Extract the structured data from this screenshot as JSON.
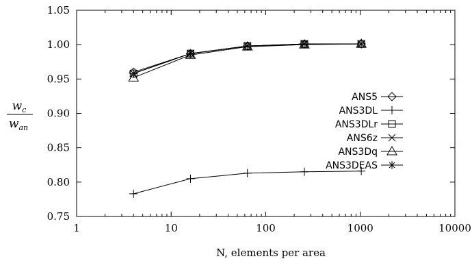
{
  "chart_data": {
    "type": "line",
    "x_scale": "log",
    "xlim": [
      1,
      10000
    ],
    "ylim": [
      0.75,
      1.05
    ],
    "xlabel": "N, elements per area",
    "ylabel_num": "w",
    "ylabel_num_sub": "c",
    "ylabel_den": "w",
    "ylabel_den_sub": "an",
    "x_ticks": [
      {
        "value": 1,
        "label": "1"
      },
      {
        "value": 10,
        "label": "10"
      },
      {
        "value": 100,
        "label": "100"
      },
      {
        "value": 1000,
        "label": "1000"
      },
      {
        "value": 10000,
        "label": "10000"
      }
    ],
    "y_ticks": [
      {
        "value": 0.75,
        "label": "0.75"
      },
      {
        "value": 0.8,
        "label": "0.80"
      },
      {
        "value": 0.85,
        "label": "0.85"
      },
      {
        "value": 0.9,
        "label": "0.90"
      },
      {
        "value": 0.95,
        "label": "0.95"
      },
      {
        "value": 1.0,
        "label": "1.00"
      },
      {
        "value": 1.05,
        "label": "1.05"
      }
    ],
    "grid": false,
    "legend_position": "right",
    "x": [
      4,
      16,
      64,
      256,
      1024
    ],
    "series": [
      {
        "name": "ANS5",
        "marker": "diamond",
        "values": [
          0.96,
          0.987,
          0.998,
          1.001,
          1.001
        ]
      },
      {
        "name": "ANS3DL",
        "marker": "plus",
        "values": [
          0.783,
          0.805,
          0.813,
          0.815,
          0.816
        ]
      },
      {
        "name": "ANS3DLr",
        "marker": "square",
        "values": [
          0.958,
          0.987,
          0.998,
          1.001,
          1.001
        ]
      },
      {
        "name": "ANS6z",
        "marker": "x",
        "values": [
          0.958,
          0.987,
          0.998,
          1.001,
          1.001
        ]
      },
      {
        "name": "ANS3Dq",
        "marker": "triangle",
        "values": [
          0.952,
          0.985,
          0.997,
          1.0,
          1.001
        ]
      },
      {
        "name": "ANS3DEAS",
        "marker": "star",
        "values": [
          0.958,
          0.987,
          0.998,
          1.001,
          1.001
        ]
      }
    ]
  }
}
